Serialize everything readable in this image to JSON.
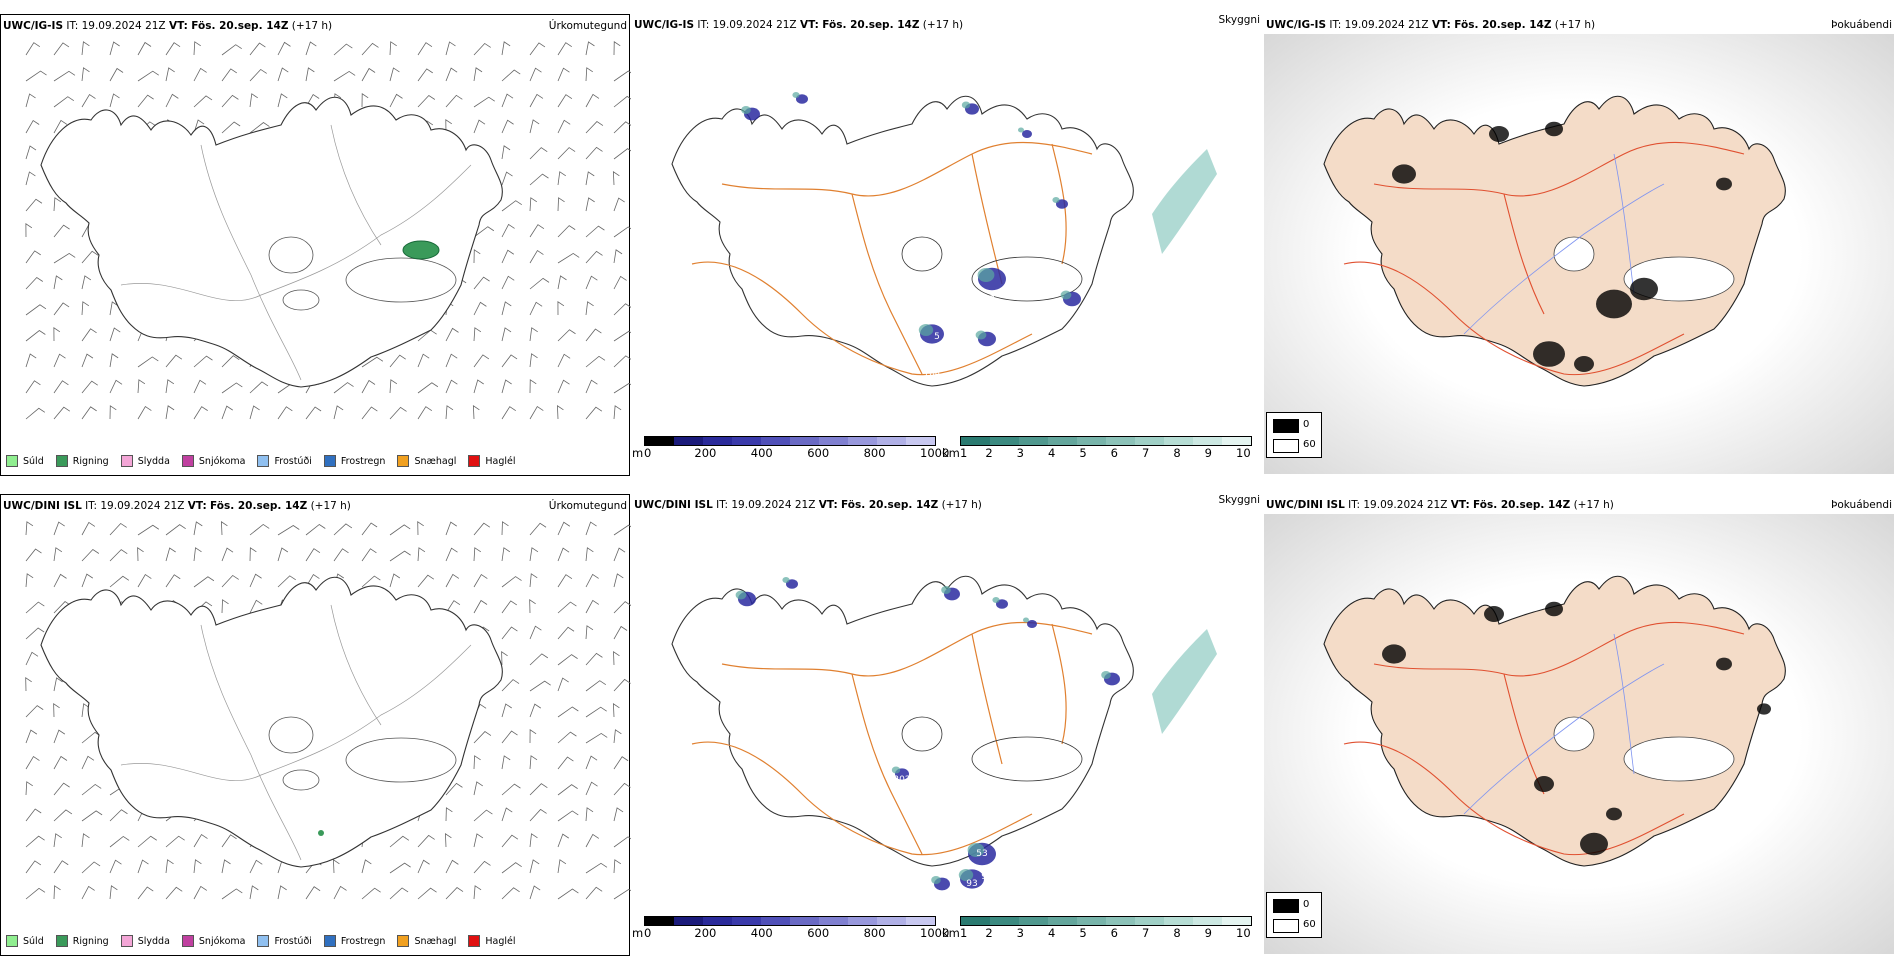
{
  "rows": [
    {
      "model": "UWC/IG-IS",
      "it_label": "IT:",
      "it_value": "19.09.2024 21Z",
      "vt_label": "VT:",
      "vt_value": "Fös. 20.sep. 14Z",
      "lead": "(+17 h)"
    },
    {
      "model": "UWC/DINI ISL",
      "it_label": "IT:",
      "it_value": "19.09.2024 21Z",
      "vt_label": "VT:",
      "vt_value": "Fös. 20.sep. 14Z",
      "lead": "(+17 h)"
    }
  ],
  "panel_names": {
    "precip": "Úrkomutegund",
    "visibility": "Skyggni",
    "fog": "Þokuábendi"
  },
  "precip_legend": [
    {
      "label": "Súld",
      "color": "#90ee90"
    },
    {
      "label": "Rigning",
      "color": "#3a9a5a"
    },
    {
      "label": "Slydda",
      "color": "#f4a6d7"
    },
    {
      "label": "Snjókoma",
      "color": "#c040a0"
    },
    {
      "label": "Frostúði",
      "color": "#90c0f0"
    },
    {
      "label": "Frostregn",
      "color": "#3070c0"
    },
    {
      "label": "Snæhagl",
      "color": "#f0a020"
    },
    {
      "label": "Haglél",
      "color": "#e01010"
    }
  ],
  "ceiling_bar": {
    "unit": "m",
    "ticks": [
      "0",
      "200",
      "400",
      "600",
      "800",
      "1000"
    ],
    "colors": [
      "#000000",
      "#1a1a7a",
      "#2a2a9a",
      "#3a3aaa",
      "#5050b8",
      "#6a6ac4",
      "#8080d0",
      "#9898dc",
      "#b0b0e6",
      "#c8c8f0"
    ]
  },
  "vis_bar": {
    "unit": "km",
    "ticks": [
      "1",
      "2",
      "3",
      "4",
      "5",
      "6",
      "7",
      "8",
      "9",
      "10"
    ],
    "colors": [
      "#2a7a70",
      "#3c8a80",
      "#50988e",
      "#64a69c",
      "#78b4aa",
      "#8cc2b8",
      "#a0d0c6",
      "#b6ddd4",
      "#cce8e2",
      "#e4f4f0"
    ]
  },
  "fog_legend": [
    {
      "label": "0",
      "color": "#000000"
    },
    {
      "label": "60",
      "color": "#ffffff"
    }
  ],
  "map_labels": {
    "row0": [
      "1",
      "7",
      "104",
      "5"
    ],
    "row1": [
      "202",
      "53",
      "95",
      "93",
      "5"
    ]
  }
}
